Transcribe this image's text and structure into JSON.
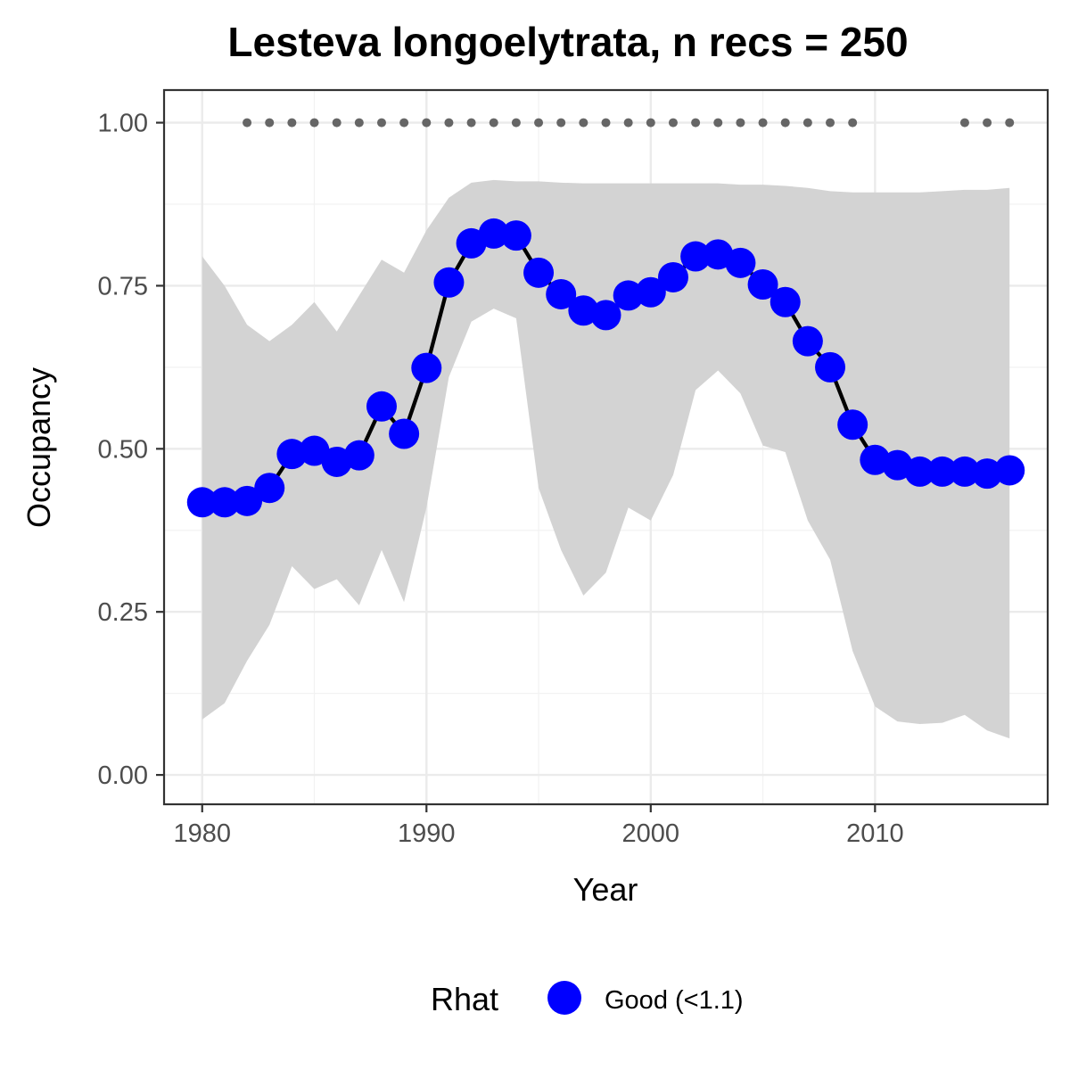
{
  "chart_data": {
    "type": "line",
    "title": "Lesteva longoelytrata, n recs = 250",
    "xlabel": "Year",
    "ylabel": "Occupancy",
    "xlim": [
      1978.3,
      2017.7
    ],
    "ylim": [
      -0.045,
      1.05
    ],
    "x_ticks": [
      1980,
      1990,
      2000,
      2010
    ],
    "y_ticks": [
      0.0,
      0.25,
      0.5,
      0.75,
      1.0
    ],
    "x_tick_labels": [
      "1980",
      "1990",
      "2000",
      "2010"
    ],
    "y_tick_labels": [
      "0.00",
      "0.25",
      "0.50",
      "0.75",
      "1.00"
    ],
    "grid": true,
    "series": [
      {
        "name": "Good (<1.1)",
        "color": "#0000ff",
        "line_color": "#000000",
        "x": [
          1980,
          1981,
          1982,
          1983,
          1984,
          1985,
          1986,
          1987,
          1988,
          1989,
          1990,
          1991,
          1992,
          1993,
          1994,
          1995,
          1996,
          1997,
          1998,
          1999,
          2000,
          2001,
          2002,
          2003,
          2004,
          2005,
          2006,
          2007,
          2008,
          2009,
          2010,
          2011,
          2012,
          2013,
          2014,
          2015,
          2016
        ],
        "y": [
          0.418,
          0.418,
          0.42,
          0.44,
          0.492,
          0.497,
          0.48,
          0.49,
          0.565,
          0.523,
          0.624,
          0.755,
          0.815,
          0.83,
          0.827,
          0.77,
          0.737,
          0.712,
          0.705,
          0.735,
          0.74,
          0.763,
          0.795,
          0.798,
          0.785,
          0.752,
          0.725,
          0.665,
          0.625,
          0.537,
          0.483,
          0.475,
          0.465,
          0.465,
          0.465,
          0.462,
          0.467
        ]
      }
    ],
    "credible_interval": {
      "fill": "#d3d3d3",
      "upper": [
        0.795,
        0.75,
        0.69,
        0.665,
        0.69,
        0.725,
        0.68,
        0.735,
        0.79,
        0.77,
        0.835,
        0.885,
        0.908,
        0.912,
        0.91,
        0.91,
        0.908,
        0.907,
        0.907,
        0.907,
        0.907,
        0.907,
        0.907,
        0.907,
        0.905,
        0.905,
        0.903,
        0.9,
        0.895,
        0.893,
        0.893,
        0.893,
        0.893,
        0.895,
        0.897,
        0.897,
        0.9
      ],
      "lower": [
        0.085,
        0.11,
        0.175,
        0.23,
        0.32,
        0.285,
        0.3,
        0.26,
        0.345,
        0.265,
        0.41,
        0.61,
        0.695,
        0.715,
        0.7,
        0.44,
        0.345,
        0.275,
        0.31,
        0.41,
        0.39,
        0.46,
        0.59,
        0.62,
        0.585,
        0.505,
        0.495,
        0.39,
        0.33,
        0.19,
        0.105,
        0.082,
        0.078,
        0.08,
        0.092,
        0.068,
        0.056
      ]
    },
    "data_years": [
      1982,
      1983,
      1984,
      1985,
      1986,
      1987,
      1988,
      1989,
      1990,
      1991,
      1992,
      1993,
      1994,
      1995,
      1996,
      1997,
      1998,
      1999,
      2000,
      2001,
      2002,
      2003,
      2004,
      2005,
      2006,
      2007,
      2008,
      2009,
      2014,
      2015,
      2016
    ],
    "data_years_y": 1.0,
    "data_years_color": "#666666",
    "legend": {
      "title": "Rhat",
      "position": "bottom",
      "items": [
        {
          "label": "Good (<1.1)",
          "color": "#0000ff"
        }
      ]
    }
  }
}
